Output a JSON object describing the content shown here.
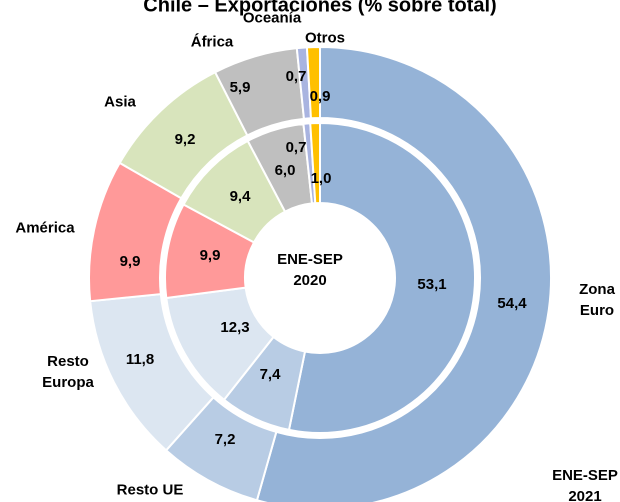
{
  "chart_data": {
    "type": "donut",
    "title": "Chile – Exportaciones (% sobre total)",
    "categories": [
      "Zona Euro",
      "Resto UE",
      "Resto Europa",
      "América",
      "Asia",
      "África",
      "Oceanía",
      "Otros"
    ],
    "colors": [
      "#95b3d7",
      "#b8cce4",
      "#dce6f1",
      "#ff9999",
      "#d8e4bc",
      "#bfbfbf",
      "#a9b4e0",
      "#ffc000"
    ],
    "series": [
      {
        "name": "ENE-SEP 2021",
        "values": [
          54.4,
          7.2,
          11.8,
          9.9,
          9.2,
          5.9,
          0.7,
          0.9
        ],
        "value_labels": [
          "54,4",
          "7,2",
          "11,8",
          "9,9",
          "9,2",
          "5,9",
          "0,7",
          "0,9"
        ]
      },
      {
        "name": "ENE-SEP 2020",
        "values": [
          53.1,
          7.4,
          12.3,
          9.9,
          9.4,
          6.0,
          0.7,
          1.0
        ],
        "value_labels": [
          "53,1",
          "7,4",
          "12,3",
          "9,9",
          "9,4",
          "6,0",
          "0,7",
          "1,0"
        ]
      }
    ]
  }
}
